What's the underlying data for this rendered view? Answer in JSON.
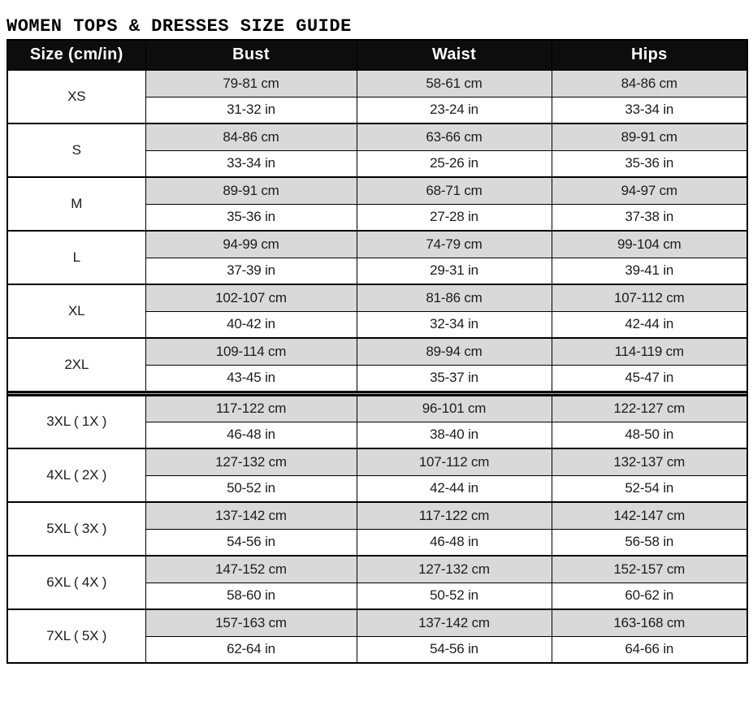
{
  "title": "WOMEN TOPS & DRESSES SIZE GUIDE",
  "colors": {
    "header_bg": "#0d0d0d",
    "header_text": "#ffffff",
    "cm_row_bg": "#d9d9d9",
    "in_row_bg": "#ffffff",
    "border": "#000000",
    "section_divider_bg": "#b3b3b3"
  },
  "table": {
    "headers": [
      "Size (cm/in)",
      "Bust",
      "Waist",
      "Hips"
    ],
    "rows": [
      {
        "size": "XS",
        "group": "standard",
        "bust_cm": "79-81 cm",
        "bust_in": "31-32 in",
        "waist_cm": "58-61 cm",
        "waist_in": "23-24 in",
        "hips_cm": "84-86 cm",
        "hips_in": "33-34 in"
      },
      {
        "size": "S",
        "group": "standard",
        "bust_cm": "84-86 cm",
        "bust_in": "33-34 in",
        "waist_cm": "63-66 cm",
        "waist_in": "25-26 in",
        "hips_cm": "89-91 cm",
        "hips_in": "35-36 in"
      },
      {
        "size": "M",
        "group": "standard",
        "bust_cm": "89-91 cm",
        "bust_in": "35-36 in",
        "waist_cm": "68-71 cm",
        "waist_in": "27-28 in",
        "hips_cm": "94-97 cm",
        "hips_in": "37-38 in"
      },
      {
        "size": "L",
        "group": "standard",
        "bust_cm": "94-99 cm",
        "bust_in": "37-39 in",
        "waist_cm": "74-79 cm",
        "waist_in": "29-31 in",
        "hips_cm": "99-104 cm",
        "hips_in": "39-41 in"
      },
      {
        "size": "XL",
        "group": "standard",
        "bust_cm": "102-107 cm",
        "bust_in": "40-42 in",
        "waist_cm": "81-86 cm",
        "waist_in": "32-34 in",
        "hips_cm": "107-112 cm",
        "hips_in": "42-44 in"
      },
      {
        "size": "2XL",
        "group": "standard",
        "bust_cm": "109-114 cm",
        "bust_in": "43-45 in",
        "waist_cm": "89-94 cm",
        "waist_in": "35-37 in",
        "hips_cm": "114-119 cm",
        "hips_in": "45-47 in"
      },
      {
        "size": "3XL ( 1X )",
        "group": "plus",
        "bust_cm": "117-122 cm",
        "bust_in": "46-48 in",
        "waist_cm": "96-101 cm",
        "waist_in": "38-40 in",
        "hips_cm": "122-127 cm",
        "hips_in": "48-50 in"
      },
      {
        "size": "4XL ( 2X )",
        "group": "plus",
        "bust_cm": "127-132 cm",
        "bust_in": "50-52 in",
        "waist_cm": "107-112 cm",
        "waist_in": "42-44 in",
        "hips_cm": "132-137 cm",
        "hips_in": "52-54 in"
      },
      {
        "size": "5XL ( 3X )",
        "group": "plus",
        "bust_cm": "137-142 cm",
        "bust_in": "54-56 in",
        "waist_cm": "117-122 cm",
        "waist_in": "46-48 in",
        "hips_cm": "142-147 cm",
        "hips_in": "56-58 in"
      },
      {
        "size": "6XL ( 4X )",
        "group": "plus",
        "bust_cm": "147-152 cm",
        "bust_in": "58-60 in",
        "waist_cm": "127-132 cm",
        "waist_in": "50-52 in",
        "hips_cm": "152-157 cm",
        "hips_in": "60-62 in"
      },
      {
        "size": "7XL ( 5X )",
        "group": "plus",
        "bust_cm": "157-163 cm",
        "bust_in": "62-64 in",
        "waist_cm": "137-142 cm",
        "waist_in": "54-56 in",
        "hips_cm": "163-168 cm",
        "hips_in": "64-66 in"
      }
    ]
  }
}
